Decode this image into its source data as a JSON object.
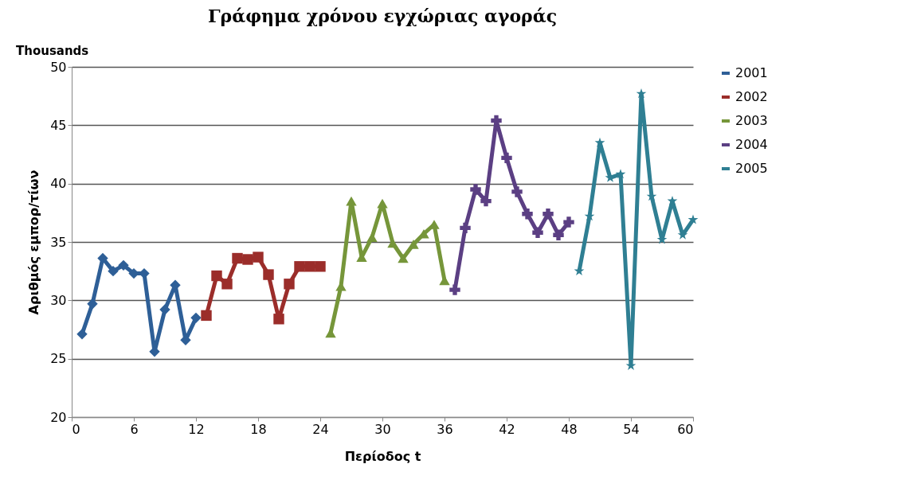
{
  "chart_data": {
    "type": "line",
    "title": "Γράφημα χρόνου εγχώριας αγοράς",
    "xlabel": "Περίοδος t",
    "ylabel": "Αριθμός εμπορ/τίων",
    "annotations": [
      "Thousands"
    ],
    "xlim": [
      0,
      60
    ],
    "xticks": [
      0,
      6,
      12,
      18,
      24,
      30,
      36,
      42,
      48,
      54,
      60
    ],
    "ylim": [
      20,
      50
    ],
    "yticks": [
      20,
      25,
      30,
      35,
      40,
      45,
      50
    ],
    "grid": "y",
    "legend": "right",
    "series": [
      {
        "name": "2001",
        "color": "#2e5f97",
        "marker": "diamond",
        "x": [
          1,
          2,
          3,
          4,
          5,
          6,
          7,
          8,
          9,
          10,
          11,
          12
        ],
        "values": [
          27.1,
          29.7,
          33.6,
          32.5,
          33.0,
          32.3,
          32.3,
          25.6,
          29.2,
          31.3,
          26.6,
          28.5
        ]
      },
      {
        "name": "2002",
        "color": "#9b2d2a",
        "marker": "square",
        "x": [
          13,
          14,
          15,
          16,
          17,
          18,
          19,
          20,
          21,
          22,
          23,
          24
        ],
        "values": [
          28.7,
          32.1,
          31.4,
          33.6,
          33.5,
          33.7,
          32.2,
          28.4,
          31.4,
          32.9,
          32.9,
          32.9
        ]
      },
      {
        "name": "2003",
        "color": "#76963a",
        "marker": "triangle",
        "x": [
          25,
          26,
          27,
          28,
          29,
          30,
          31,
          32,
          33,
          34,
          35,
          36
        ],
        "values": [
          27.2,
          31.2,
          38.5,
          33.7,
          35.4,
          38.3,
          34.9,
          33.6,
          34.8,
          35.7,
          36.5,
          31.7
        ]
      },
      {
        "name": "2004",
        "color": "#5b3f83",
        "marker": "cross",
        "x": [
          37,
          38,
          39,
          40,
          41,
          42,
          43,
          44,
          45,
          46,
          47,
          48
        ],
        "values": [
          30.9,
          36.2,
          39.5,
          38.5,
          45.4,
          42.2,
          39.3,
          37.4,
          35.8,
          37.4,
          35.6,
          36.7
        ]
      },
      {
        "name": "2005",
        "color": "#2f7f93",
        "marker": "star",
        "x": [
          49,
          50,
          51,
          52,
          53,
          54,
          55,
          56,
          57,
          58,
          59,
          60
        ],
        "values": [
          32.5,
          37.2,
          43.5,
          40.5,
          40.8,
          24.4,
          47.7,
          38.9,
          35.2,
          38.5,
          35.6,
          36.9
        ]
      }
    ]
  }
}
